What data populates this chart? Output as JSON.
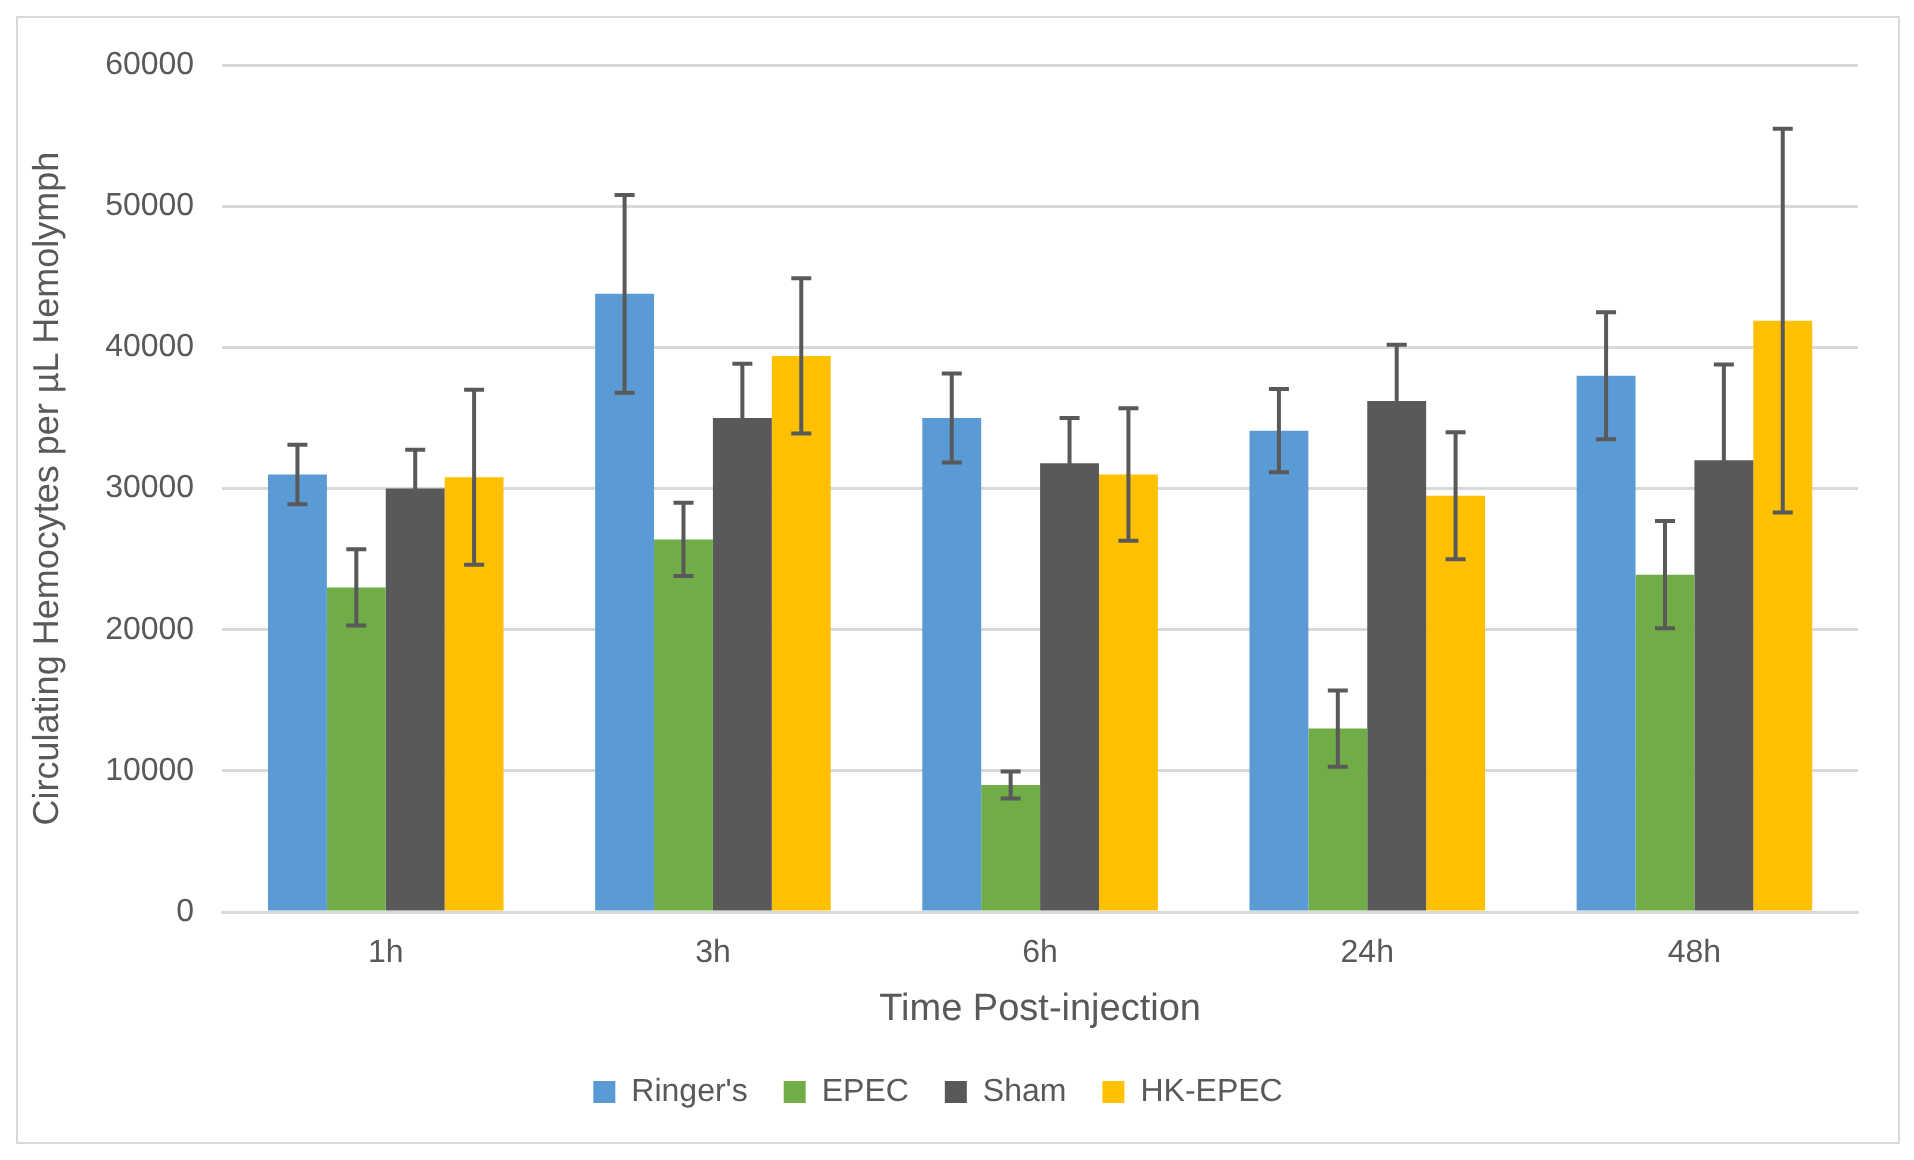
{
  "chart_data": {
    "type": "bar",
    "xlabel": "Time Post-injection",
    "ylabel": "Circulating Hemocytes per µL Hemolymph",
    "categories": [
      "1h",
      "3h",
      "6h",
      "24h",
      "48h"
    ],
    "series": [
      {
        "name": "Ringer's",
        "color": "#5b9bd5",
        "values": [
          31000,
          43800,
          35000,
          34100,
          38000
        ],
        "errors": [
          2100,
          7000,
          3150,
          2950,
          4500
        ]
      },
      {
        "name": "EPEC",
        "color": "#70ad47",
        "values": [
          23000,
          26400,
          9000,
          13000,
          23900
        ],
        "errors": [
          2700,
          2600,
          950,
          2700,
          3800
        ]
      },
      {
        "name": "Sham",
        "color": "#595959",
        "values": [
          30000,
          35000,
          31800,
          36200,
          32000
        ],
        "errors": [
          2750,
          3850,
          3200,
          4000,
          6800
        ]
      },
      {
        "name": "HK-EPEC",
        "color": "#ffc000",
        "values": [
          30800,
          39400,
          31000,
          29500,
          41900
        ],
        "errors": [
          6200,
          5500,
          4700,
          4500,
          13600
        ]
      }
    ],
    "ylim": [
      0,
      60000
    ],
    "yticks": [
      0,
      10000,
      20000,
      30000,
      40000,
      50000,
      60000
    ],
    "grid": "y",
    "legend": "bottom"
  }
}
